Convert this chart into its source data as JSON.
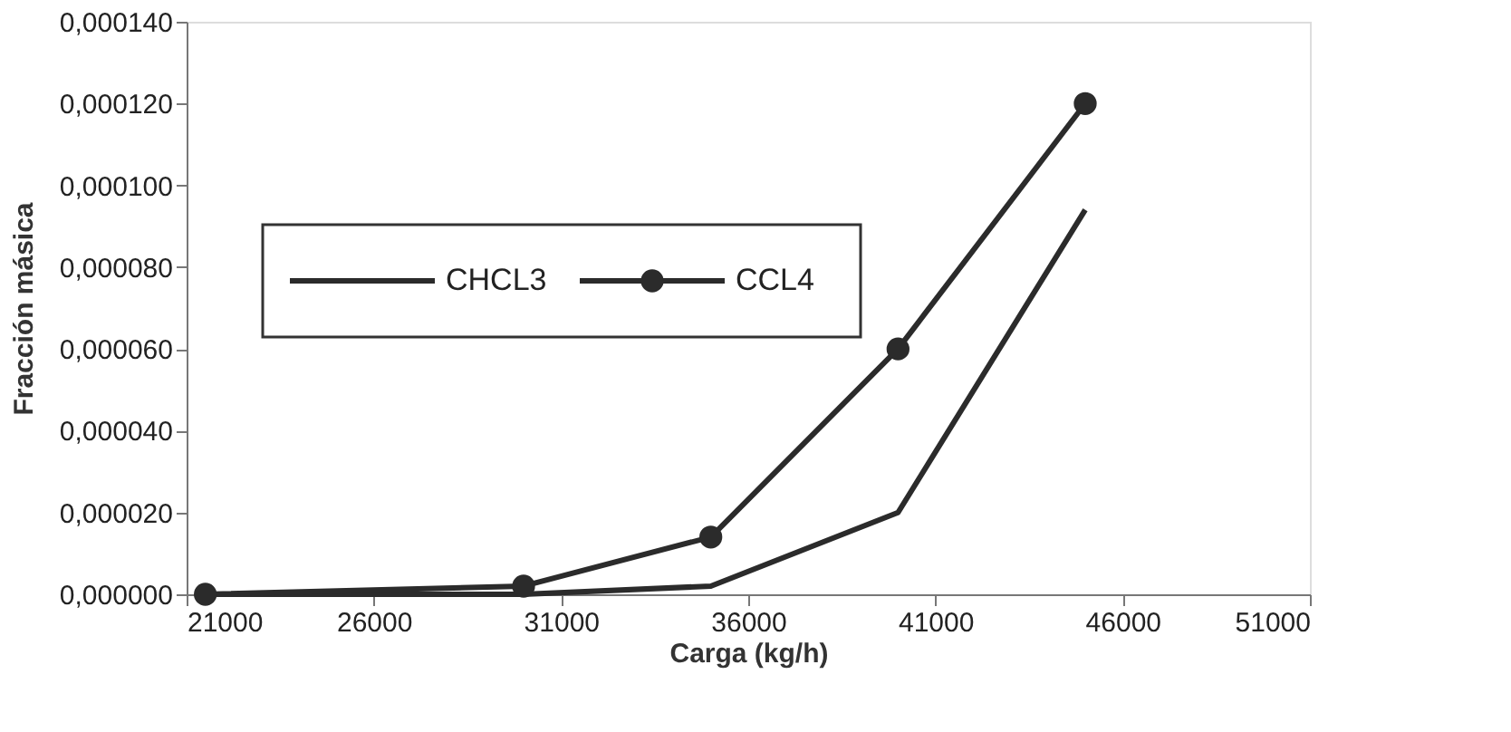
{
  "chart_data": {
    "type": "line",
    "xlabel": "Carga (kg/h)",
    "ylabel": "Fracción másica",
    "x": [
      21500,
      30000,
      35000,
      40000,
      45000
    ],
    "series": [
      {
        "name": "CHCL3",
        "color": "#2b2b2b",
        "marker": "none",
        "values": [
          0,
          0,
          2e-06,
          2e-05,
          9.4e-05
        ]
      },
      {
        "name": "CCL4",
        "color": "#2b2b2b",
        "marker": "circle",
        "values": [
          0,
          2e-06,
          1.4e-05,
          6e-05,
          0.00012
        ]
      }
    ],
    "xlim": [
      21000,
      51000
    ],
    "xticks": [
      21000,
      26000,
      31000,
      36000,
      41000,
      46000,
      51000
    ],
    "ylim": [
      0,
      0.00014
    ],
    "yticks": [
      {
        "value": 0,
        "label": "0,000000"
      },
      {
        "value": 2e-05,
        "label": "0,000020"
      },
      {
        "value": 4e-05,
        "label": "0,000040"
      },
      {
        "value": 6e-05,
        "label": "0,000060"
      },
      {
        "value": 8e-05,
        "label": "0,000080"
      },
      {
        "value": 0.0001,
        "label": "0,000100"
      },
      {
        "value": 0.00012,
        "label": "0,000120"
      },
      {
        "value": 0.00014,
        "label": "0,000140"
      }
    ],
    "grid": false,
    "legend": "left",
    "line_style": "solid"
  }
}
